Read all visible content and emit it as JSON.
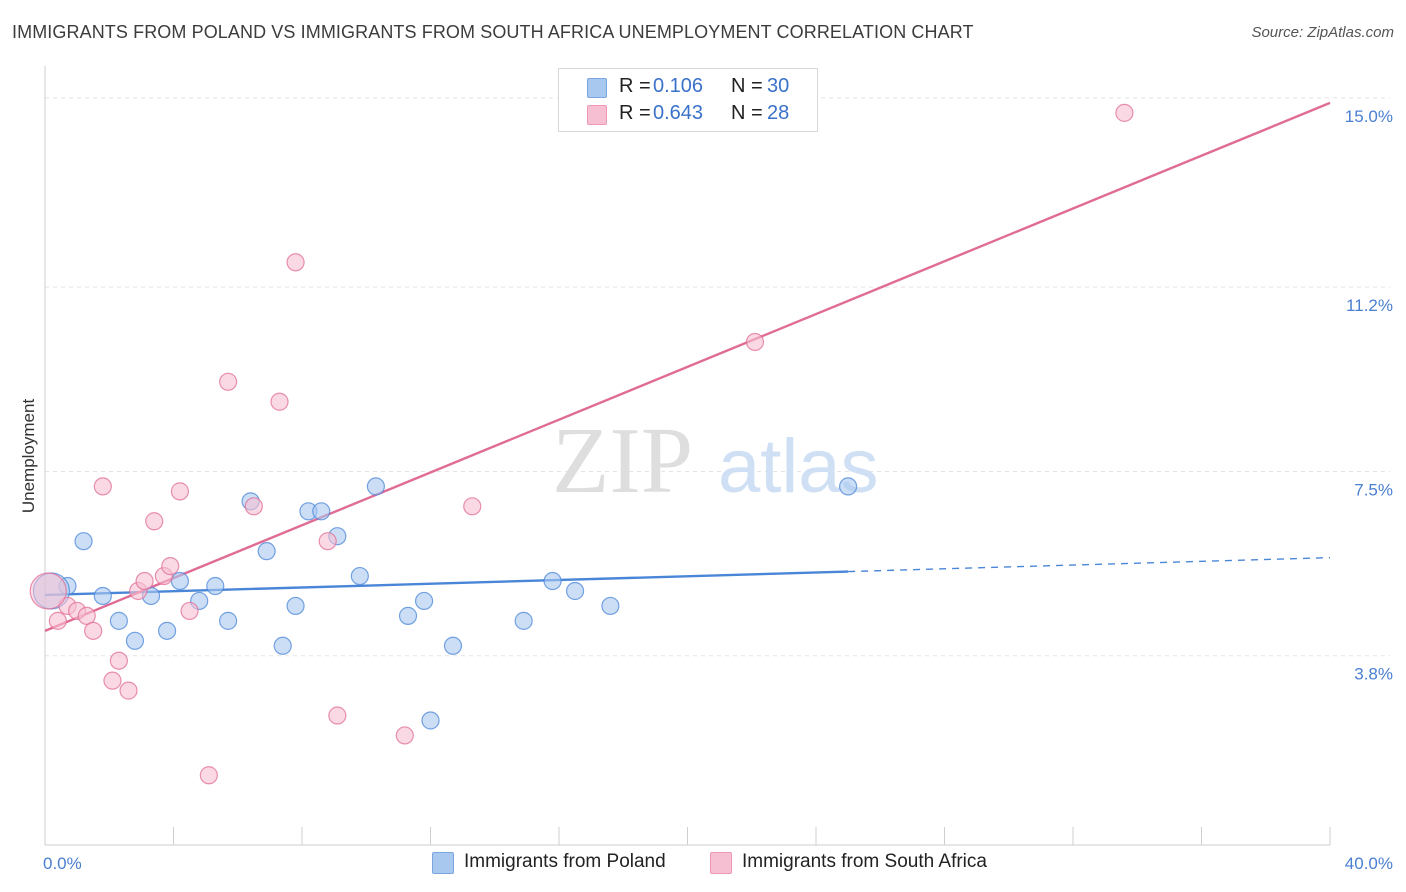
{
  "header": {
    "title": "IMMIGRANTS FROM POLAND VS IMMIGRANTS FROM SOUTH AFRICA UNEMPLOYMENT CORRELATION CHART",
    "source": "Source: ZipAtlas.com"
  },
  "watermark": {
    "zip": "ZIP",
    "atlas": "atlas"
  },
  "legend": {
    "rows": [
      {
        "r_label": "R =",
        "r_value": "0.106",
        "n_label": "N =",
        "n_value": "30",
        "color": "#a9c8f0",
        "border": "#7aa6e0"
      },
      {
        "r_label": "R =",
        "r_value": "0.643",
        "n_label": "N =",
        "n_value": "28",
        "color": "#f6bfd2",
        "border": "#ee98b6"
      }
    ]
  },
  "bottom_legend": {
    "items": [
      {
        "label": "Immigrants from Poland",
        "color": "#a9c8f0",
        "border": "#7aa6e0"
      },
      {
        "label": "Immigrants from South Africa",
        "color": "#f6bfd2",
        "border": "#ee98b6"
      }
    ]
  },
  "chart_data": {
    "type": "scatter",
    "title": "IMMIGRANTS FROM POLAND VS IMMIGRANTS FROM SOUTH AFRICA UNEMPLOYMENT CORRELATION CHART",
    "xlabel": "",
    "ylabel": "Unemployment",
    "xlim": [
      0,
      40
    ],
    "ylim": [
      0,
      15.4
    ],
    "x_tick_labels": [
      "0.0%",
      "40.0%"
    ],
    "y_ticks": [
      3.8,
      7.5,
      11.2,
      15.0
    ],
    "y_tick_labels": [
      "3.8%",
      "7.5%",
      "11.2%",
      "15.0%"
    ],
    "grid": true,
    "legend_position": "top-center",
    "series": [
      {
        "name": "Immigrants from Poland",
        "color": "#4a86d8",
        "fill": "#a9c8f0",
        "points": [
          [
            0.7,
            5.2
          ],
          [
            1.2,
            6.1
          ],
          [
            1.8,
            5.0
          ],
          [
            2.3,
            4.5
          ],
          [
            2.8,
            4.1
          ],
          [
            3.3,
            5.0
          ],
          [
            3.8,
            4.3
          ],
          [
            4.2,
            5.3
          ],
          [
            4.8,
            4.9
          ],
          [
            5.3,
            5.2
          ],
          [
            5.7,
            4.5
          ],
          [
            6.4,
            6.9
          ],
          [
            6.9,
            5.9
          ],
          [
            7.4,
            4.0
          ],
          [
            7.8,
            4.8
          ],
          [
            8.2,
            6.7
          ],
          [
            8.6,
            6.7
          ],
          [
            9.1,
            6.2
          ],
          [
            9.8,
            5.4
          ],
          [
            10.3,
            7.2
          ],
          [
            11.3,
            4.6
          ],
          [
            11.8,
            4.9
          ],
          [
            12.7,
            4.0
          ],
          [
            14.9,
            4.5
          ],
          [
            15.8,
            5.3
          ],
          [
            16.5,
            5.1
          ],
          [
            17.6,
            4.8
          ],
          [
            12.0,
            2.5
          ],
          [
            25.0,
            7.2
          ],
          [
            0.2,
            5.1
          ]
        ],
        "trend": {
          "x0": 0,
          "y0": 5.02,
          "x1": 25.0,
          "y1": 5.49,
          "x_dash_end": 40,
          "y_dash_end": 5.77
        }
      },
      {
        "name": "Immigrants from South Africa",
        "color": "#e06c95",
        "fill": "#f6bfd2",
        "points": [
          [
            0.4,
            4.5
          ],
          [
            0.7,
            4.8
          ],
          [
            1.0,
            4.7
          ],
          [
            1.3,
            4.6
          ],
          [
            1.5,
            4.3
          ],
          [
            1.8,
            7.2
          ],
          [
            2.1,
            3.3
          ],
          [
            2.3,
            3.7
          ],
          [
            2.6,
            3.1
          ],
          [
            2.9,
            5.1
          ],
          [
            3.1,
            5.3
          ],
          [
            3.4,
            6.5
          ],
          [
            3.7,
            5.4
          ],
          [
            3.9,
            5.6
          ],
          [
            4.2,
            7.1
          ],
          [
            4.5,
            4.7
          ],
          [
            5.1,
            1.4
          ],
          [
            5.7,
            9.3
          ],
          [
            6.5,
            6.8
          ],
          [
            7.3,
            8.9
          ],
          [
            7.8,
            11.7
          ],
          [
            8.8,
            6.1
          ],
          [
            9.1,
            2.6
          ],
          [
            11.2,
            2.2
          ],
          [
            13.3,
            6.8
          ],
          [
            22.1,
            10.1
          ],
          [
            33.6,
            14.7
          ],
          [
            0.1,
            5.1
          ]
        ],
        "trend": {
          "x0": 0,
          "y0": 4.3,
          "x1": 40,
          "y1": 14.9
        }
      }
    ]
  }
}
